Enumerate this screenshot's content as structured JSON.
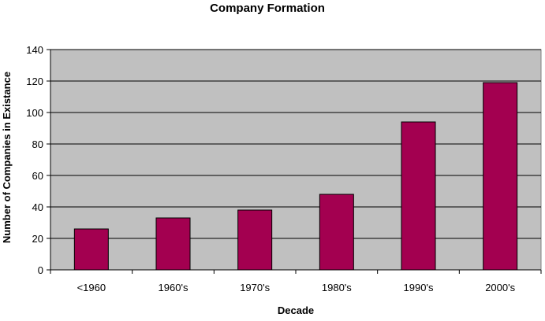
{
  "chart_data": {
    "type": "bar",
    "title": "Company Formation",
    "xlabel": "Decade",
    "ylabel": "Number of Companies in Existance",
    "categories": [
      "<1960",
      "1960's",
      "1970's",
      "1980's",
      "1990's",
      "2000's"
    ],
    "values": [
      26,
      33,
      38,
      48,
      94,
      119
    ],
    "ylim": [
      0,
      140
    ],
    "yticks": [
      "0",
      "20",
      "40",
      "60",
      "80",
      "100",
      "120",
      "140"
    ],
    "grid": true,
    "legend": "none",
    "colors": {
      "bar": "#a30050",
      "plot_background": "#c0c0c0",
      "grid": "#000000"
    }
  }
}
